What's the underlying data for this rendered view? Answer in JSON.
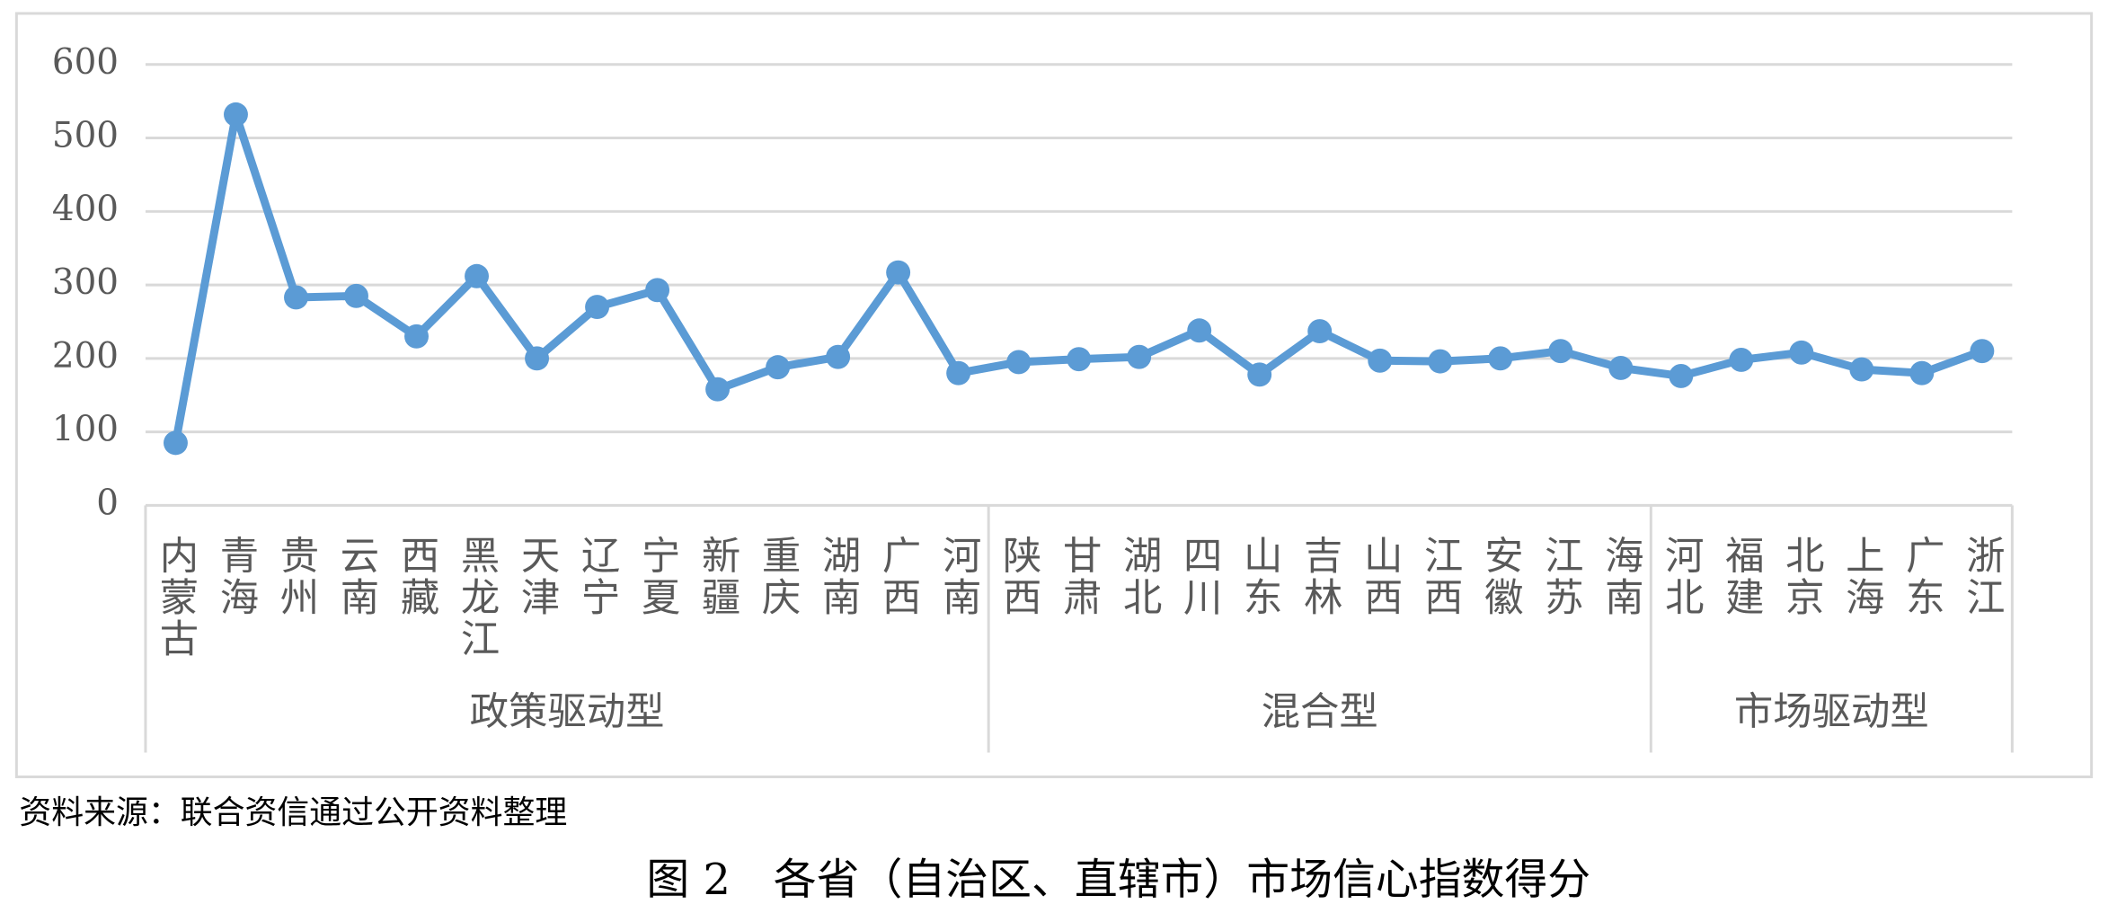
{
  "chart_data": {
    "type": "line",
    "groups": [
      {
        "name": "政策驱动型",
        "categories": [
          "内蒙古",
          "青海",
          "贵州",
          "云南",
          "西藏",
          "黑龙江",
          "天津",
          "辽宁",
          "宁夏",
          "新疆",
          "重庆",
          "湖南",
          "广西",
          "河南"
        ]
      },
      {
        "name": "混合型",
        "categories": [
          "陕西",
          "甘肃",
          "湖北",
          "四川",
          "山东",
          "吉林",
          "山西",
          "江西",
          "安徽",
          "江苏",
          "海南"
        ]
      },
      {
        "name": "市场驱动型",
        "categories": [
          "河北",
          "福建",
          "北京",
          "上海",
          "广东",
          "浙江"
        ]
      }
    ],
    "series": [
      {
        "color": "#5b9bd5",
        "values": [
          85,
          532,
          283,
          285,
          230,
          312,
          200,
          270,
          293,
          158,
          188,
          202,
          317,
          180,
          195,
          199,
          202,
          238,
          178,
          237,
          197,
          196,
          200,
          210,
          187,
          176,
          198,
          208,
          185,
          180,
          210
        ]
      }
    ],
    "ylim": [
      0,
      600
    ],
    "yticks": [
      0,
      100,
      200,
      300,
      400,
      500,
      600
    ],
    "grid": true,
    "source": "资料来源：联合资信通过公开资料整理",
    "caption": "图 2　各省（自治区、直辖市）市场信心指数得分"
  }
}
